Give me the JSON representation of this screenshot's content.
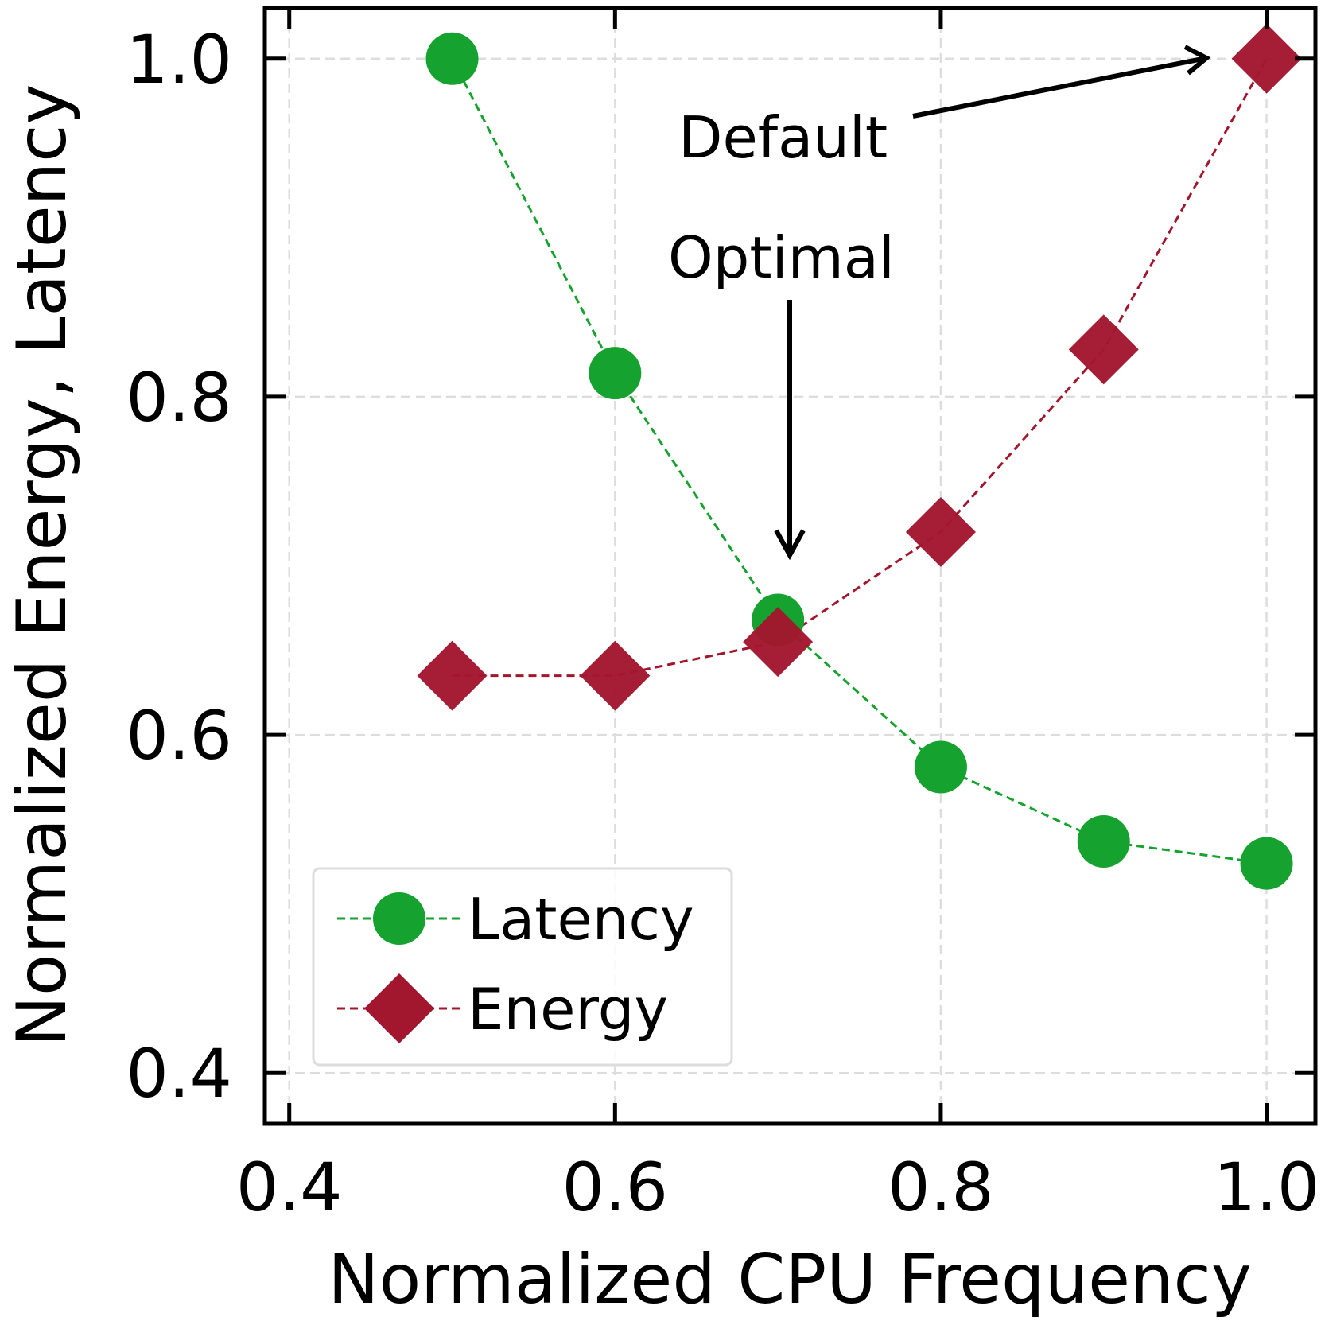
{
  "chart_data": {
    "type": "line",
    "title": "",
    "xlabel": "Normalized CPU Frequency",
    "ylabel": "Normalized Energy, Latency",
    "xlim": [
      0.385,
      1.03
    ],
    "ylim": [
      0.37,
      1.03
    ],
    "xticks": [
      0.4,
      0.6,
      0.8,
      1.0
    ],
    "xtick_labels": [
      "0.4",
      "0.6",
      "0.8",
      "1.0"
    ],
    "yticks": [
      0.4,
      0.6,
      0.8,
      1.0
    ],
    "ytick_labels": [
      "0.4",
      "0.6",
      "0.8",
      "1.0"
    ],
    "grid": true,
    "legend_position": "bottom-left",
    "series": [
      {
        "name": "Latency",
        "marker": "circle",
        "line": "dashed",
        "color": "#16a22e",
        "x": [
          0.5,
          0.6,
          0.7,
          0.8,
          0.9,
          1.0
        ],
        "y": [
          1.0,
          0.814,
          0.668,
          0.581,
          0.537,
          0.524
        ]
      },
      {
        "name": "Energy",
        "marker": "diamond",
        "line": "dashed",
        "color": "#a3172e",
        "x": [
          0.5,
          0.6,
          0.7,
          0.8,
          0.9,
          1.0
        ],
        "y": [
          0.635,
          0.635,
          0.655,
          0.72,
          0.828,
          1.0
        ]
      }
    ],
    "annotations": [
      {
        "text": "Default",
        "target": [
          1.0,
          1.0
        ]
      },
      {
        "text": "Optimal",
        "target": [
          0.7,
          0.668
        ]
      }
    ]
  }
}
